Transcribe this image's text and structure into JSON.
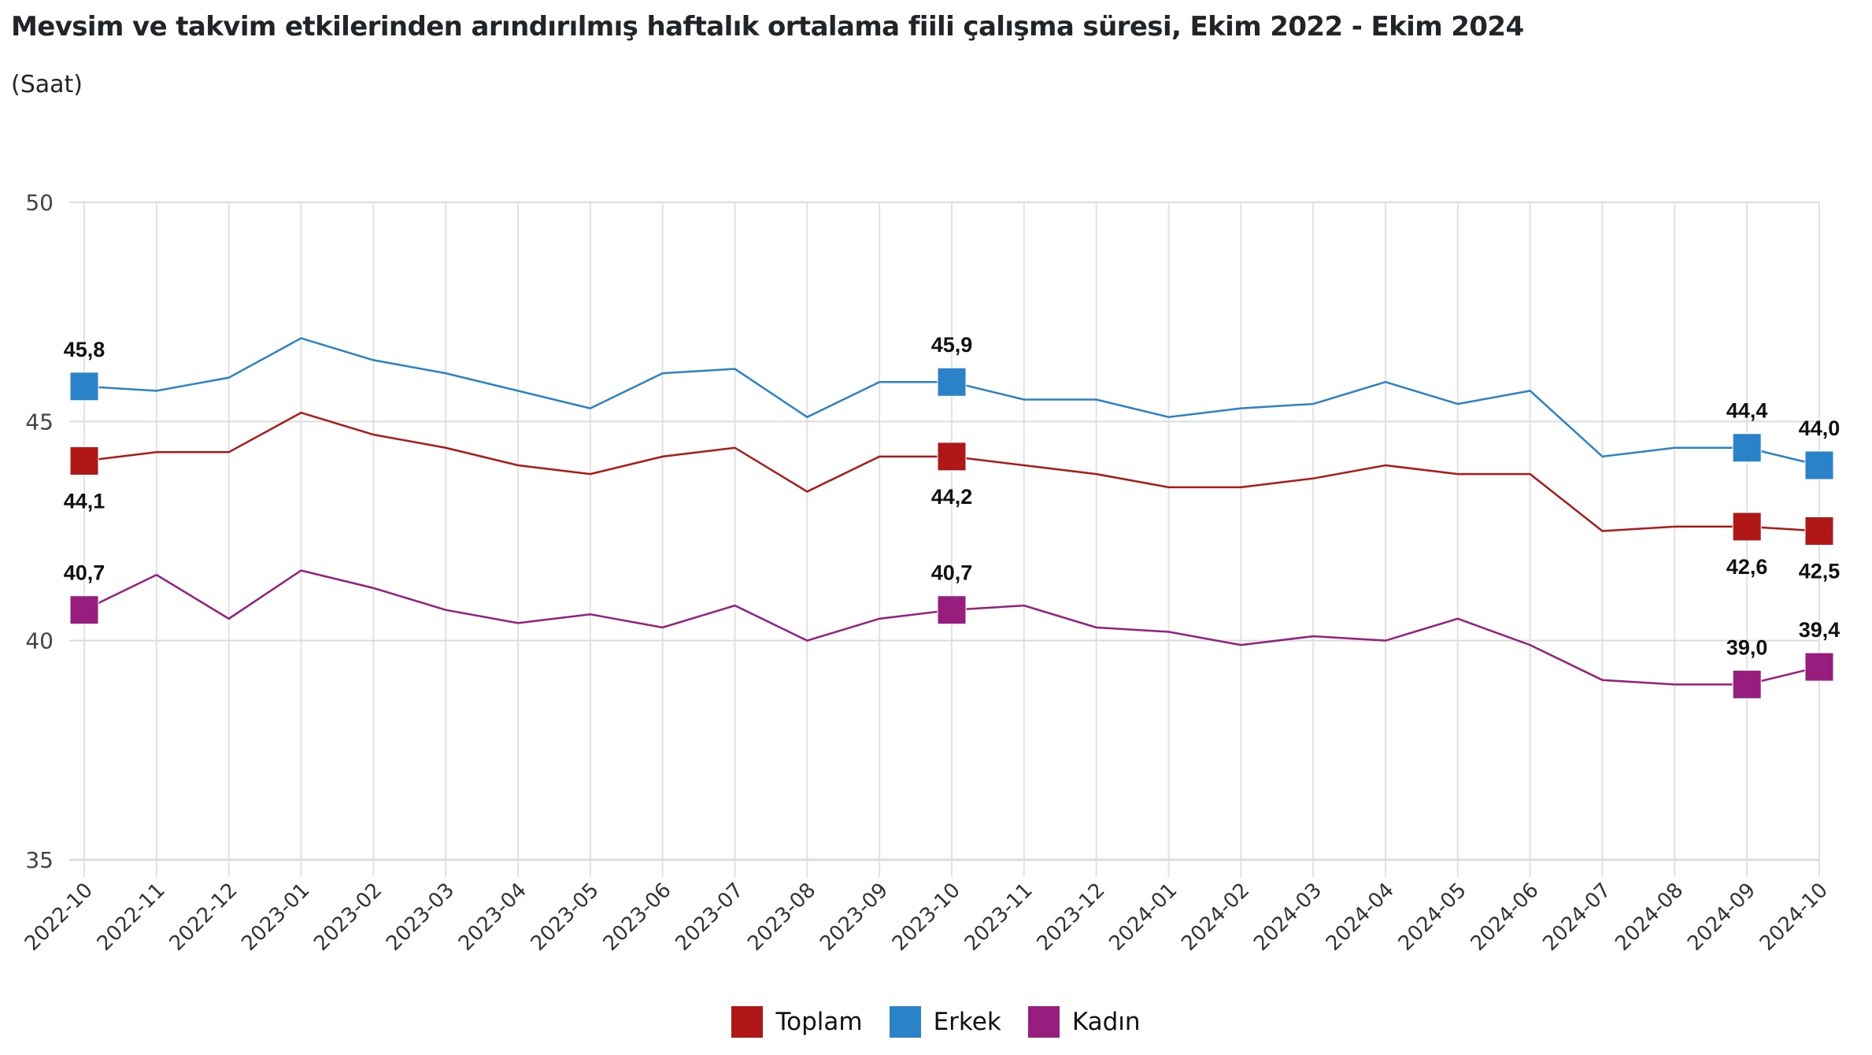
{
  "header": {
    "title": "Mevsim ve takvim etkilerinden arındırılmış haftalık ortalama fiili çalışma süresi, Ekim 2022 - Ekim 2024",
    "subtitle": "(Saat)"
  },
  "chart_data": {
    "type": "line",
    "title": "Mevsim ve takvim etkilerinden arındırılmış haftalık ortalama fiili çalışma süresi, Ekim 2022 - Ekim 2024",
    "subtitle": "(Saat)",
    "xlabel": "",
    "ylabel": "",
    "ylim": [
      35,
      50
    ],
    "yticks": [
      35,
      40,
      45,
      50
    ],
    "grid": true,
    "legend_position": "bottom-center",
    "categories": [
      "2022-10",
      "2022-11",
      "2022-12",
      "2023-01",
      "2023-02",
      "2023-03",
      "2023-04",
      "2023-05",
      "2023-06",
      "2023-07",
      "2023-08",
      "2023-09",
      "2023-10",
      "2023-11",
      "2023-12",
      "2024-01",
      "2024-02",
      "2024-03",
      "2024-04",
      "2024-05",
      "2024-06",
      "2024-07",
      "2024-08",
      "2024-09",
      "2024-10"
    ],
    "series": [
      {
        "name": "Toplam",
        "color": "#b01717",
        "values": [
          44.1,
          44.3,
          44.3,
          45.2,
          44.7,
          44.4,
          44.0,
          43.8,
          44.2,
          44.4,
          43.4,
          44.2,
          44.2,
          44.0,
          43.8,
          43.5,
          43.5,
          43.7,
          44.0,
          43.8,
          43.8,
          42.5,
          42.6,
          42.6,
          42.5
        ],
        "label_position": "below"
      },
      {
        "name": "Erkek",
        "color": "#2a82c8",
        "values": [
          45.8,
          45.7,
          46.0,
          46.9,
          46.4,
          46.1,
          45.7,
          45.3,
          46.1,
          46.2,
          45.1,
          45.9,
          45.9,
          45.5,
          45.5,
          45.1,
          45.3,
          45.4,
          45.9,
          45.4,
          45.7,
          44.2,
          44.4,
          44.4,
          44.0
        ],
        "label_position": "above"
      },
      {
        "name": "Kadın",
        "color": "#971e7e",
        "values": [
          40.7,
          41.5,
          40.5,
          41.6,
          41.2,
          40.7,
          40.4,
          40.6,
          40.3,
          40.8,
          40.0,
          40.5,
          40.7,
          40.8,
          40.3,
          40.2,
          39.9,
          40.1,
          40.0,
          40.5,
          39.9,
          39.1,
          39.0,
          39.0,
          39.4
        ],
        "label_position": "above"
      }
    ],
    "highlighted_indices": [
      0,
      12,
      23,
      24
    ],
    "data_labels": {
      "Toplam": {
        "0": "44,1",
        "12": "44,2",
        "23": "42,6",
        "24": "42,5"
      },
      "Erkek": {
        "0": "45,8",
        "12": "45,9",
        "23": "44,4",
        "24": "44,0"
      },
      "Kadın": {
        "0": "40,7",
        "12": "40,7",
        "23": "39,0",
        "24": "39,4"
      }
    }
  },
  "legend": {
    "items": [
      {
        "label": "Toplam",
        "color": "#b01717"
      },
      {
        "label": "Erkek",
        "color": "#2a82c8"
      },
      {
        "label": "Kadın",
        "color": "#971e7e"
      }
    ]
  }
}
